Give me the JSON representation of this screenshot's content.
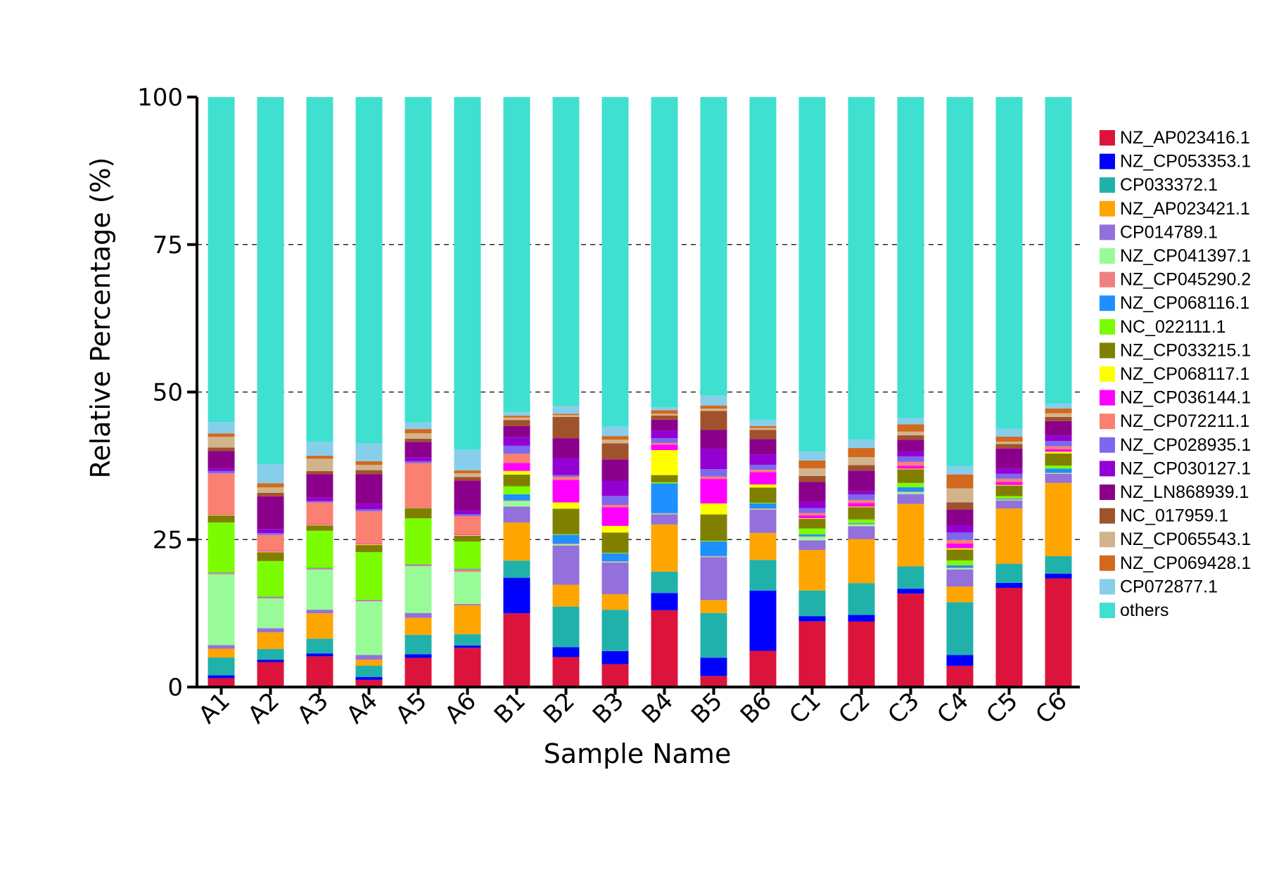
{
  "chart_data": {
    "type": "bar",
    "stacked": true,
    "xlabel": "Sample Name",
    "ylabel": "Relative Percentage (%)",
    "ylim": [
      0,
      100
    ],
    "yticks": [
      "0",
      "25",
      "50",
      "75",
      "100"
    ],
    "ytick_values": [
      0,
      25,
      50,
      75,
      100
    ],
    "grid": "dashed horizontal at 25, 50, 75",
    "legend_position": "right",
    "categories": [
      "A1",
      "A2",
      "A3",
      "A4",
      "A5",
      "A6",
      "B1",
      "B2",
      "B3",
      "B4",
      "B5",
      "B6",
      "C1",
      "C2",
      "C3",
      "C4",
      "C5",
      "C6"
    ],
    "series": [
      {
        "name": "NZ_AP023416.1",
        "color": "#dc143c",
        "values": [
          1.5,
          4.2,
          5.2,
          1.2,
          4.8,
          6.6,
          12.0,
          4.8,
          3.8,
          12.9,
          1.8,
          5.9,
          11.0,
          10.7,
          15.1,
          3.5,
          16.0,
          18.1
        ]
      },
      {
        "name": "NZ_CP053353.1",
        "color": "#0000ff",
        "values": [
          0.5,
          0.4,
          0.5,
          0.5,
          0.6,
          0.4,
          5.8,
          1.6,
          2.2,
          2.9,
          3.0,
          9.8,
          0.9,
          1.1,
          0.8,
          1.8,
          0.8,
          0.8
        ]
      },
      {
        "name": "CP033372.1",
        "color": "#20b2aa",
        "values": [
          3.0,
          1.8,
          2.5,
          1.9,
          3.2,
          1.9,
          2.8,
          6.5,
          6.9,
          3.6,
          7.3,
          5.0,
          4.3,
          5.2,
          3.6,
          8.7,
          3.1,
          2.9
        ]
      },
      {
        "name": "NZ_AP023421.1",
        "color": "#ffa500",
        "values": [
          1.5,
          2.8,
          4.3,
          1.0,
          2.8,
          4.9,
          6.2,
          3.5,
          2.6,
          7.9,
          2.1,
          4.4,
          6.8,
          7.2,
          10.1,
          2.6,
          8.9,
          12.2
        ]
      },
      {
        "name": "CP014789.1",
        "color": "#9370db",
        "values": [
          0.6,
          0.7,
          0.6,
          0.8,
          0.8,
          0.2,
          2.6,
          6.3,
          5.3,
          1.7,
          7.0,
          3.8,
          1.6,
          2.1,
          1.6,
          2.8,
          1.3,
          1.5
        ]
      },
      {
        "name": "NZ_CP041397.1",
        "color": "#98fb98",
        "values": [
          12.0,
          5.0,
          6.8,
          9.0,
          7.7,
          5.4,
          0.9,
          0.2,
          0.1,
          0.1,
          0.1,
          0.1,
          0.6,
          0.3,
          0.3,
          0.2,
          0.1,
          0.1
        ]
      },
      {
        "name": "NZ_CP045290.2",
        "color": "#f08080",
        "values": [
          0.2,
          0.2,
          0.2,
          0.2,
          0.2,
          0.4,
          0.1,
          0.1,
          0.1,
          0.1,
          0.1,
          0.1,
          0.1,
          0.1,
          0.1,
          0.1,
          0.1,
          0.1
        ]
      },
      {
        "name": "NZ_CP068116.1",
        "color": "#1e90ff",
        "values": [
          0.1,
          0.1,
          0.1,
          0.1,
          0.1,
          0.1,
          1.0,
          1.4,
          1.3,
          5.0,
          2.4,
          0.8,
          0.3,
          0.1,
          0.7,
          0.4,
          0.1,
          0.7
        ]
      },
      {
        "name": "NC_022111.1",
        "color": "#7cfc00",
        "values": [
          8.5,
          6.0,
          6.3,
          8.0,
          7.6,
          4.6,
          1.3,
          0.1,
          0.1,
          0.2,
          0.1,
          0.1,
          1.0,
          0.6,
          0.7,
          0.8,
          0.4,
          0.5
        ]
      },
      {
        "name": "NZ_CP033215.1",
        "color": "#808000",
        "values": [
          1.2,
          1.5,
          0.9,
          1.2,
          1.7,
          1.0,
          1.9,
          4.1,
          3.4,
          1.2,
          4.3,
          2.5,
          1.6,
          2.0,
          2.2,
          1.8,
          1.7,
          2.0
        ]
      },
      {
        "name": "NZ_CP068117.1",
        "color": "#ffff00",
        "values": [
          0.1,
          0.1,
          0.1,
          0.1,
          0.1,
          0.1,
          0.6,
          1.0,
          1.1,
          4.2,
          1.8,
          0.5,
          0.1,
          0.1,
          0.1,
          0.2,
          0.1,
          0.3
        ]
      },
      {
        "name": "NZ_CP036144.1",
        "color": "#ff00ff",
        "values": [
          0.1,
          0.1,
          0.1,
          0.1,
          0.1,
          0.1,
          1.3,
          3.6,
          3.1,
          0.9,
          4.0,
          2.0,
          0.5,
          0.6,
          0.5,
          0.8,
          0.5,
          0.4
        ]
      },
      {
        "name": "NZ_CP072211.1",
        "color": "#fa8072",
        "values": [
          6.9,
          2.7,
          3.7,
          5.5,
          7.2,
          3.1,
          1.5,
          0.5,
          0.4,
          0.3,
          0.4,
          0.4,
          0.4,
          0.5,
          0.6,
          0.6,
          0.5,
          0.5
        ]
      },
      {
        "name": "NZ_CP028935.1",
        "color": "#7b68ee",
        "values": [
          0.4,
          0.3,
          0.2,
          0.3,
          0.3,
          0.3,
          1.3,
          0.3,
          1.5,
          0.8,
          1.2,
          0.8,
          0.8,
          0.9,
          0.9,
          1.2,
          0.8,
          0.9
        ]
      },
      {
        "name": "NZ_CP030127.1",
        "color": "#9400d3",
        "values": [
          0.4,
          0.7,
          0.6,
          0.9,
          0.6,
          0.6,
          1.4,
          2.7,
          2.5,
          1.3,
          3.3,
          1.7,
          1.1,
          0.5,
          0.8,
          1.2,
          0.9,
          0.9
        ]
      },
      {
        "name": "NZ_LN868939.1",
        "color": "#8b008b",
        "values": [
          3.0,
          5.5,
          4.0,
          5.0,
          2.6,
          5.1,
          1.8,
          3.2,
          3.6,
          1.8,
          3.1,
          2.5,
          3.3,
          3.4,
          1.9,
          2.6,
          3.2,
          2.4
        ]
      },
      {
        "name": "NC_017959.1",
        "color": "#a0522d",
        "values": [
          0.6,
          0.6,
          0.5,
          0.7,
          0.5,
          0.6,
          1.0,
          3.4,
          2.7,
          0.7,
          3.1,
          1.5,
          1.0,
          0.9,
          0.7,
          1.2,
          0.7,
          0.7
        ]
      },
      {
        "name": "NZ_CP065543.1",
        "color": "#d2b48c",
        "values": [
          1.8,
          0.9,
          2.1,
          0.9,
          0.9,
          0.6,
          0.4,
          0.3,
          0.6,
          0.3,
          0.4,
          0.3,
          1.3,
          1.3,
          0.6,
          2.3,
          0.4,
          0.6
        ]
      },
      {
        "name": "NZ_CP069428.1",
        "color": "#d2691e",
        "values": [
          0.6,
          0.7,
          0.5,
          0.6,
          0.7,
          0.5,
          0.3,
          0.2,
          0.6,
          0.6,
          0.5,
          0.3,
          1.3,
          1.5,
          1.2,
          2.3,
          0.8,
          0.8
        ]
      },
      {
        "name": "CP072877.1",
        "color": "#87ceeb",
        "values": [
          1.9,
          3.2,
          2.4,
          3.0,
          1.1,
          3.5,
          0.6,
          1.3,
          1.6,
          0.5,
          1.6,
          1.0,
          1.5,
          1.4,
          1.0,
          1.4,
          1.3,
          0.8
        ]
      },
      {
        "name": "others",
        "color": "#40e0d0",
        "values": [
          55.1,
          61.8,
          58.4,
          58.3,
          53.6,
          59.4,
          51.3,
          49.5,
          55.0,
          52.1,
          48.8,
          52.6,
          59.5,
          56.0,
          51.9,
          60.9,
          53.5,
          51.1
        ]
      }
    ]
  }
}
